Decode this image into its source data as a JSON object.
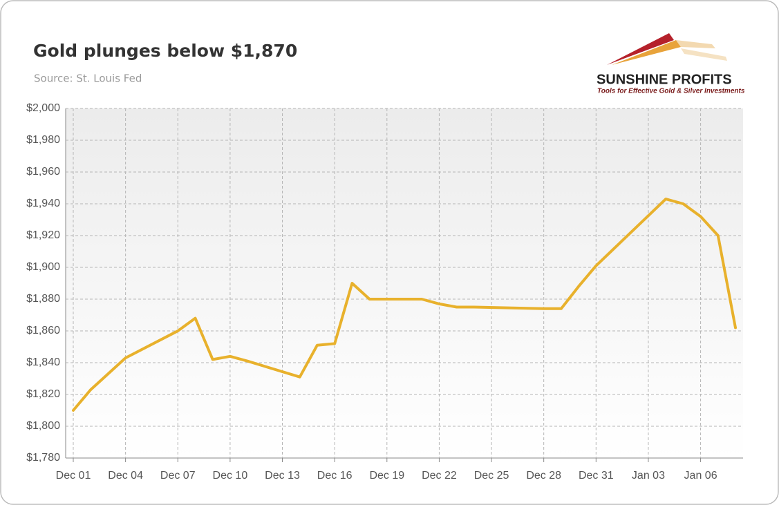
{
  "chart_data": {
    "type": "line",
    "title": "Gold plunges below $1,870",
    "subtitle": "Source: St. Louis Fed",
    "brand": "SUNSHINE PROFITS",
    "tagline": "Tools for Effective Gold & Silver Investments",
    "x": [
      "Dec 01",
      "Dec 02",
      "Dec 03",
      "Dec 04",
      "Dec 07",
      "Dec 08",
      "Dec 09",
      "Dec 10",
      "Dec 11",
      "Dec 14",
      "Dec 15",
      "Dec 16",
      "Dec 17",
      "Dec 18",
      "Dec 21",
      "Dec 22",
      "Dec 23",
      "Dec 24",
      "Dec 28",
      "Dec 29",
      "Dec 30",
      "Dec 31",
      "Jan 04",
      "Jan 05",
      "Jan 06",
      "Jan 07",
      "Jan 08"
    ],
    "series": [
      {
        "name": "Gold",
        "color": "#e8b12c",
        "values": [
          1810,
          1823,
          1833,
          1843,
          1860,
          1868,
          1842,
          1844,
          1841,
          1831,
          1851,
          1852,
          1890,
          1880,
          1880,
          1877,
          1875,
          1875,
          1874,
          1874,
          1888,
          1901,
          1943,
          1940,
          1932,
          1920,
          1862
        ]
      }
    ],
    "xlim": [
      "Dec 01",
      "Jan 08"
    ],
    "xticks": [
      "Dec 01",
      "Dec 04",
      "Dec 07",
      "Dec 10",
      "Dec 13",
      "Dec 16",
      "Dec 19",
      "Dec 22",
      "Dec 25",
      "Dec 28",
      "Dec 31",
      "Jan 03",
      "Jan 06"
    ],
    "ylim": [
      1780,
      2000
    ],
    "yticks": [
      {
        "value": 1780,
        "label": "$1,780"
      },
      {
        "value": 1800,
        "label": "$1,800"
      },
      {
        "value": 1820,
        "label": "$1,820"
      },
      {
        "value": 1840,
        "label": "$1,840"
      },
      {
        "value": 1860,
        "label": "$1,860"
      },
      {
        "value": 1880,
        "label": "$1,880"
      },
      {
        "value": 1900,
        "label": "$1,900"
      },
      {
        "value": 1920,
        "label": "$1,920"
      },
      {
        "value": 1940,
        "label": "$1,940"
      },
      {
        "value": 1960,
        "label": "$1,960"
      },
      {
        "value": 1980,
        "label": "$1,980"
      },
      {
        "value": 2000,
        "label": "$2,000"
      }
    ],
    "grid": true
  }
}
